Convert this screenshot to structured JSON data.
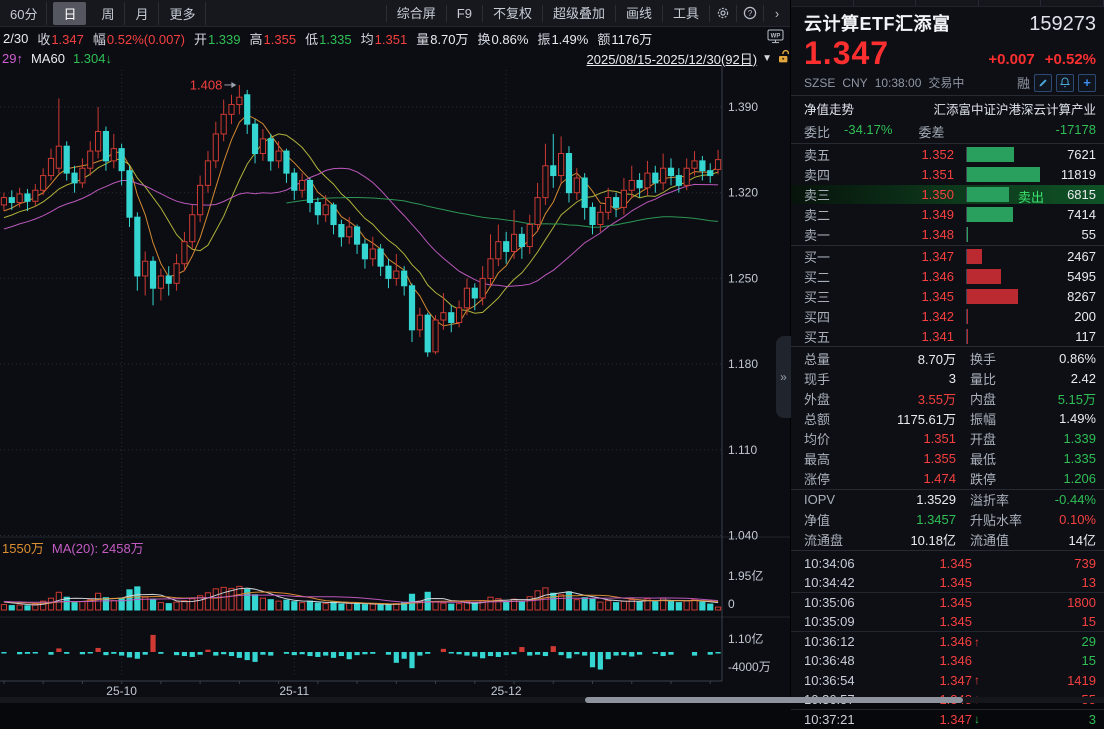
{
  "toolbar": {
    "periods": [
      {
        "label": "60分",
        "selected": false
      },
      {
        "label": "日",
        "selected": true
      },
      {
        "label": "周",
        "selected": false
      },
      {
        "label": "月",
        "selected": false
      },
      {
        "label": "更多",
        "selected": false
      }
    ],
    "menus": [
      "综合屏",
      "F9",
      "不复权",
      "超级叠加",
      "画线",
      "工具"
    ],
    "icons": [
      "settings",
      "help",
      "expand"
    ]
  },
  "info_bar": {
    "prefix": "2/30",
    "items": [
      {
        "label": "收",
        "value": "1.347",
        "color": "c-red"
      },
      {
        "label": "幅",
        "value": "0.52%(0.007)",
        "color": "c-red"
      },
      {
        "label": "开",
        "value": "1.339",
        "color": "c-green"
      },
      {
        "label": "高",
        "value": "1.355",
        "color": "c-red"
      },
      {
        "label": "低",
        "value": "1.335",
        "color": "c-green"
      },
      {
        "label": "均",
        "value": "1.351",
        "color": "c-red"
      },
      {
        "label": "量",
        "value": "8.70万",
        "color": "c-white"
      },
      {
        "label": "换",
        "value": "0.86%",
        "color": "c-white"
      },
      {
        "label": "振",
        "value": "1.49%",
        "color": "c-white"
      },
      {
        "label": "额",
        "value": "1176万",
        "color": "c-white"
      }
    ]
  },
  "ma_bar": {
    "prefix": "29↑",
    "ma60_label": "MA60",
    "ma60_value": "1.304↓",
    "date_range": "2025/08/15-2025/12/30(92日)"
  },
  "volume_pane": {
    "legend_1": "1550万",
    "legend_2": "MA(20): 2458万"
  },
  "chart_data": {
    "type": "candlestick",
    "symbol": "云计算ETF汇添富",
    "code": "159273",
    "period": "日K",
    "visible_range": "2025/08/15-2025/12/30(92日)",
    "y_ticks": [
      1.39,
      1.32,
      1.25,
      1.18,
      1.11,
      1.04
    ],
    "x_ticks": [
      {
        "label": "25-10",
        "index": 15
      },
      {
        "label": "25-11",
        "index": 37
      },
      {
        "label": "25-12",
        "index": 64
      }
    ],
    "annotation": {
      "text": "1.408",
      "index": 30,
      "price": 1.408
    },
    "candles": [
      [
        1.31,
        1.316,
        1.305,
        1.32
      ],
      [
        1.316,
        1.312,
        1.306,
        1.322
      ],
      [
        1.312,
        1.319,
        1.308,
        1.324
      ],
      [
        1.319,
        1.313,
        1.305,
        1.323
      ],
      [
        1.313,
        1.322,
        1.309,
        1.327
      ],
      [
        1.322,
        1.334,
        1.318,
        1.34
      ],
      [
        1.334,
        1.348,
        1.33,
        1.356
      ],
      [
        1.34,
        1.358,
        1.336,
        1.397
      ],
      [
        1.358,
        1.336,
        1.33,
        1.362
      ],
      [
        1.336,
        1.328,
        1.32,
        1.342
      ],
      [
        1.328,
        1.34,
        1.324,
        1.348
      ],
      [
        1.34,
        1.354,
        1.334,
        1.362
      ],
      [
        1.354,
        1.37,
        1.348,
        1.39
      ],
      [
        1.37,
        1.346,
        1.338,
        1.374
      ],
      [
        1.346,
        1.356,
        1.34,
        1.368
      ],
      [
        1.356,
        1.338,
        1.326,
        1.36
      ],
      [
        1.338,
        1.3,
        1.292,
        1.342
      ],
      [
        1.3,
        1.252,
        1.24,
        1.304
      ],
      [
        1.252,
        1.264,
        1.236,
        1.272
      ],
      [
        1.264,
        1.242,
        1.228,
        1.268
      ],
      [
        1.242,
        1.252,
        1.232,
        1.258
      ],
      [
        1.252,
        1.246,
        1.236,
        1.26
      ],
      [
        1.246,
        1.262,
        1.24,
        1.27
      ],
      [
        1.262,
        1.28,
        1.256,
        1.288
      ],
      [
        1.28,
        1.302,
        1.274,
        1.31
      ],
      [
        1.302,
        1.326,
        1.296,
        1.334
      ],
      [
        1.326,
        1.346,
        1.32,
        1.354
      ],
      [
        1.346,
        1.368,
        1.34,
        1.378
      ],
      [
        1.368,
        1.384,
        1.362,
        1.396
      ],
      [
        1.384,
        1.392,
        1.376,
        1.4
      ],
      [
        1.392,
        1.398,
        1.384,
        1.408
      ],
      [
        1.4,
        1.376,
        1.368,
        1.404
      ],
      [
        1.376,
        1.352,
        1.344,
        1.38
      ],
      [
        1.352,
        1.364,
        1.346,
        1.372
      ],
      [
        1.364,
        1.346,
        1.338,
        1.368
      ],
      [
        1.346,
        1.354,
        1.34,
        1.362
      ],
      [
        1.354,
        1.336,
        1.328,
        1.356
      ],
      [
        1.336,
        1.322,
        1.314,
        1.34
      ],
      [
        1.322,
        1.33,
        1.316,
        1.336
      ],
      [
        1.33,
        1.312,
        1.304,
        1.332
      ],
      [
        1.312,
        1.302,
        1.294,
        1.316
      ],
      [
        1.302,
        1.31,
        1.296,
        1.318
      ],
      [
        1.31,
        1.294,
        1.286,
        1.312
      ],
      [
        1.294,
        1.284,
        1.276,
        1.298
      ],
      [
        1.284,
        1.292,
        1.278,
        1.3
      ],
      [
        1.292,
        1.278,
        1.27,
        1.294
      ],
      [
        1.278,
        1.266,
        1.258,
        1.282
      ],
      [
        1.266,
        1.274,
        1.26,
        1.284
      ],
      [
        1.274,
        1.26,
        1.252,
        1.278
      ],
      [
        1.26,
        1.25,
        1.242,
        1.266
      ],
      [
        1.25,
        1.256,
        1.244,
        1.27
      ],
      [
        1.256,
        1.244,
        1.236,
        1.26
      ],
      [
        1.244,
        1.208,
        1.198,
        1.246
      ],
      [
        1.208,
        1.22,
        1.202,
        1.226
      ],
      [
        1.22,
        1.19,
        1.186,
        1.222
      ],
      [
        1.19,
        1.216,
        1.188,
        1.22
      ],
      [
        1.216,
        1.222,
        1.208,
        1.238
      ],
      [
        1.222,
        1.214,
        1.206,
        1.228
      ],
      [
        1.214,
        1.226,
        1.21,
        1.232
      ],
      [
        1.226,
        1.242,
        1.22,
        1.25
      ],
      [
        1.242,
        1.234,
        1.224,
        1.246
      ],
      [
        1.234,
        1.25,
        1.228,
        1.26
      ],
      [
        1.25,
        1.266,
        1.244,
        1.286
      ],
      [
        1.266,
        1.28,
        1.26,
        1.294
      ],
      [
        1.28,
        1.272,
        1.262,
        1.288
      ],
      [
        1.272,
        1.286,
        1.266,
        1.306
      ],
      [
        1.286,
        1.276,
        1.266,
        1.292
      ],
      [
        1.276,
        1.294,
        1.27,
        1.302
      ],
      [
        1.294,
        1.316,
        1.288,
        1.328
      ],
      [
        1.316,
        1.342,
        1.31,
        1.36
      ],
      [
        1.342,
        1.334,
        1.324,
        1.368
      ],
      [
        1.334,
        1.352,
        1.328,
        1.366
      ],
      [
        1.352,
        1.32,
        1.312,
        1.358
      ],
      [
        1.32,
        1.332,
        1.314,
        1.34
      ],
      [
        1.332,
        1.308,
        1.298,
        1.336
      ],
      [
        1.308,
        1.294,
        1.286,
        1.312
      ],
      [
        1.294,
        1.304,
        1.288,
        1.31
      ],
      [
        1.304,
        1.316,
        1.298,
        1.324
      ],
      [
        1.316,
        1.308,
        1.3,
        1.32
      ],
      [
        1.308,
        1.322,
        1.302,
        1.332
      ],
      [
        1.322,
        1.33,
        1.316,
        1.342
      ],
      [
        1.33,
        1.324,
        1.316,
        1.336
      ],
      [
        1.324,
        1.336,
        1.318,
        1.346
      ],
      [
        1.336,
        1.328,
        1.32,
        1.342
      ],
      [
        1.328,
        1.34,
        1.322,
        1.352
      ],
      [
        1.34,
        1.334,
        1.326,
        1.348
      ],
      [
        1.334,
        1.326,
        1.32,
        1.34
      ],
      [
        1.326,
        1.34,
        1.322,
        1.348
      ],
      [
        1.34,
        1.346,
        1.334,
        1.354
      ],
      [
        1.346,
        1.338,
        1.33,
        1.35
      ],
      [
        1.338,
        1.334,
        1.328,
        1.344
      ],
      [
        1.339,
        1.347,
        1.335,
        1.355
      ]
    ],
    "volumes": [
      2200,
      1800,
      2000,
      1700,
      2400,
      3600,
      4800,
      7200,
      5200,
      3000,
      3400,
      4200,
      6800,
      5000,
      3800,
      4600,
      8200,
      9400,
      5200,
      4400,
      3000,
      2600,
      3200,
      3800,
      4600,
      5800,
      7000,
      8600,
      9200,
      8800,
      9600,
      8400,
      6200,
      4800,
      4200,
      3600,
      4000,
      3400,
      3000,
      3600,
      2800,
      2600,
      3200,
      2400,
      2800,
      2600,
      2200,
      2400,
      2000,
      2200,
      2600,
      3000,
      6400,
      3600,
      7200,
      3200,
      2800,
      2400,
      2600,
      3400,
      2800,
      3800,
      5200,
      4600,
      3400,
      4400,
      3600,
      5400,
      7800,
      9000,
      6800,
      6200,
      7400,
      4200,
      5000,
      4400,
      3200,
      3800,
      3000,
      3600,
      4200,
      3200,
      4600,
      3400,
      4800,
      3600,
      3000,
      3800,
      4400,
      3200,
      2400,
      1176
    ],
    "volume_axis": {
      "max_label": "1.95亿",
      "max_value": 19500,
      "zero_label": "0"
    },
    "indicator": {
      "top_label": "1.10亿",
      "bottom_label": "-4000万",
      "values": [
        -300,
        0,
        -500,
        -400,
        -350,
        0,
        -600,
        800,
        -400,
        0,
        -500,
        -300,
        900,
        -700,
        -400,
        -800,
        -1200,
        -1500,
        -600,
        3800,
        -400,
        0,
        -700,
        -900,
        -1100,
        -600,
        500,
        -800,
        -500,
        -900,
        -1300,
        -1800,
        -2200,
        -600,
        -800,
        0,
        -400,
        -700,
        -500,
        -900,
        -1100,
        -800,
        -1300,
        -900,
        -1600,
        -700,
        -500,
        -400,
        0,
        -600,
        -2400,
        -1500,
        -3600,
        -800,
        -400,
        0,
        700,
        -300,
        -500,
        -800,
        -1000,
        -1400,
        -900,
        -1100,
        -700,
        -500,
        1100,
        -800,
        -600,
        -900,
        1300,
        -700,
        -1400,
        -500,
        -800,
        -3400,
        -3900,
        -1600,
        -800,
        -700,
        -1000,
        -600,
        0,
        -400,
        -900,
        -600,
        0,
        0,
        -800,
        0,
        -600,
        -300
      ]
    },
    "ma_colors": {
      "ma5": "#dd8f33",
      "ma10": "#b9ba3d",
      "ma20": "#c45cc4",
      "ma60": "#2f9e57"
    }
  },
  "quote": {
    "name": "云计算ETF汇添富",
    "code": "159273",
    "price": "1.347",
    "change": "+0.007",
    "change_pct": "+0.52%",
    "exchange": "SZSE",
    "currency": "CNY",
    "time": "10:38:00",
    "status": "交易中",
    "margin_flag": "融",
    "fund_left": "净值走势",
    "fund_right": "汇添富中证沪港深云计算产业",
    "weibi_label": "委比",
    "weibi_value": "-34.17%",
    "weicha_label": "委差",
    "weicha_value": "-17178",
    "sell_flash": "卖出",
    "asks": [
      {
        "label": "卖五",
        "price": "1.352",
        "vol": 7621
      },
      {
        "label": "卖四",
        "price": "1.351",
        "vol": 11819
      },
      {
        "label": "卖三",
        "price": "1.350",
        "vol": 6815,
        "flash": true
      },
      {
        "label": "卖二",
        "price": "1.349",
        "vol": 7414
      },
      {
        "label": "卖一",
        "price": "1.348",
        "vol": 55
      }
    ],
    "bids": [
      {
        "label": "买一",
        "price": "1.347",
        "vol": 2467
      },
      {
        "label": "买二",
        "price": "1.346",
        "vol": 5495
      },
      {
        "label": "买三",
        "price": "1.345",
        "vol": 8267
      },
      {
        "label": "买四",
        "price": "1.342",
        "vol": 200
      },
      {
        "label": "买五",
        "price": "1.341",
        "vol": 117
      }
    ],
    "stats": [
      {
        "l1": "总量",
        "v1": "8.70万",
        "c1": "c-white",
        "l2": "换手",
        "v2": "0.86%",
        "c2": "c-white"
      },
      {
        "l1": "现手",
        "v1": "3",
        "c1": "c-white",
        "l2": "量比",
        "v2": "2.42",
        "c2": "c-white"
      },
      {
        "l1": "外盘",
        "v1": "3.55万",
        "c1": "c-red",
        "l2": "内盘",
        "v2": "5.15万",
        "c2": "c-green"
      },
      {
        "l1": "总额",
        "v1": "1175.61万",
        "c1": "c-white",
        "l2": "振幅",
        "v2": "1.49%",
        "c2": "c-white"
      },
      {
        "l1": "均价",
        "v1": "1.351",
        "c1": "c-red",
        "l2": "开盘",
        "v2": "1.339",
        "c2": "c-green"
      },
      {
        "l1": "最高",
        "v1": "1.355",
        "c1": "c-red",
        "l2": "最低",
        "v2": "1.335",
        "c2": "c-green"
      },
      {
        "l1": "涨停",
        "v1": "1.474",
        "c1": "c-red",
        "l2": "跌停",
        "v2": "1.206",
        "c2": "c-green",
        "sep": true
      },
      {
        "l1": "IOPV",
        "v1": "1.3529",
        "c1": "c-white",
        "l2": "溢折率",
        "v2": "-0.44%",
        "c2": "c-green"
      },
      {
        "l1": "净值",
        "v1": "1.3457",
        "c1": "c-green",
        "l2": "升贴水率",
        "v2": "0.10%",
        "c2": "c-red"
      },
      {
        "l1": "流通盘",
        "v1": "10.18亿",
        "c1": "c-white",
        "l2": "流通值",
        "v2": "14亿",
        "c2": "c-white",
        "sep": true
      }
    ],
    "trades": [
      {
        "time": "10:34:06",
        "price": "1.345",
        "dir": "",
        "vol": "739",
        "vc": "c-red"
      },
      {
        "time": "10:34:42",
        "price": "1.345",
        "dir": "",
        "vol": "13",
        "vc": "c-red",
        "sep": true
      },
      {
        "time": "10:35:06",
        "price": "1.345",
        "dir": "",
        "vol": "1800",
        "vc": "c-red"
      },
      {
        "time": "10:35:09",
        "price": "1.345",
        "dir": "",
        "vol": "15",
        "vc": "c-red",
        "sep": true
      },
      {
        "time": "10:36:12",
        "price": "1.346",
        "dir": "up",
        "vol": "29",
        "vc": "c-green"
      },
      {
        "time": "10:36:48",
        "price": "1.346",
        "dir": "",
        "vol": "15",
        "vc": "c-green"
      },
      {
        "time": "10:36:54",
        "price": "1.347",
        "dir": "up",
        "vol": "1419",
        "vc": "c-red"
      },
      {
        "time": "10:36:57",
        "price": "1.348",
        "dir": "up",
        "vol": "55",
        "vc": "c-red",
        "sep": true
      },
      {
        "time": "10:37:21",
        "price": "1.347",
        "dir": "down",
        "vol": "3",
        "vc": "c-green"
      }
    ]
  }
}
